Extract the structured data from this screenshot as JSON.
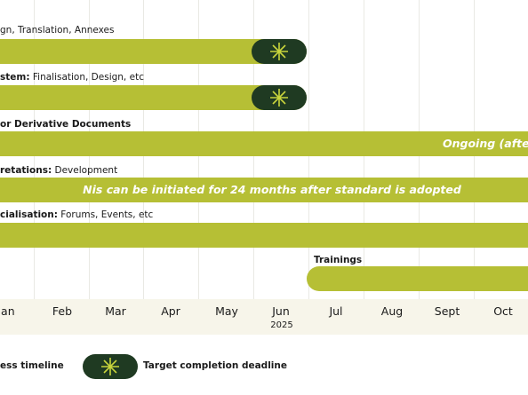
{
  "rows": [
    {
      "label": "gn, Translation, Annexes"
    },
    {
      "label_bold": "stem:",
      "label": "Finalisation, Design, etc"
    },
    {
      "label_bold": "or Derivative Documents",
      "bar_text": "Ongoing (after N"
    },
    {
      "label_bold": "retations:",
      "label": "Development",
      "bar_text": "Nis can be initiated for 24 months after standard is adopted"
    },
    {
      "label_bold": "cialisation:",
      "label": "Forums, Events, etc"
    },
    {
      "label_bold": "Trainings"
    }
  ],
  "axis": {
    "months": [
      "Jan",
      "Feb",
      "Mar",
      "Apr",
      "May",
      "Jun",
      "Jul",
      "Aug",
      "Sept",
      "Oct"
    ],
    "year": "2025"
  },
  "legend": {
    "items": [
      "ess timeline",
      "Target completion deadline"
    ]
  }
}
